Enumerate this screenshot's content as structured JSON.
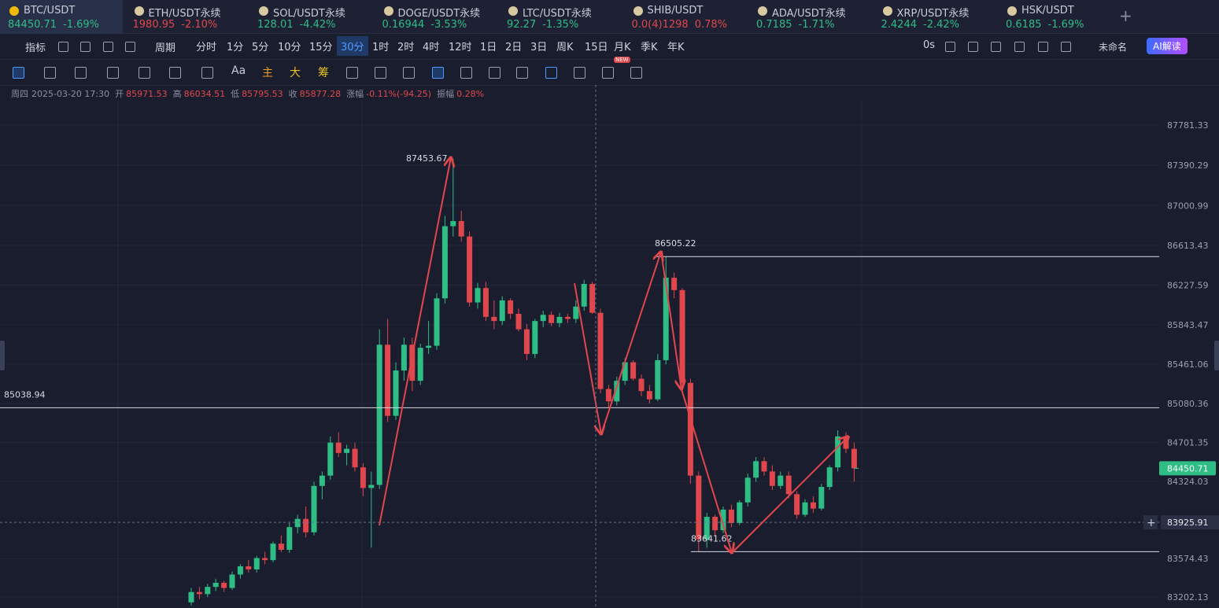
{
  "tabs": [
    {
      "symbol": "BTC/USDT",
      "price": "84450.71",
      "change": "-1.69%",
      "color": "#2ebd85"
    },
    {
      "symbol": "ETH/USDT永续",
      "price": "1980.95",
      "change": "-2.10%",
      "color": "#e0474c"
    },
    {
      "symbol": "SOL/USDT永续",
      "price": "128.01",
      "change": "-4.42%",
      "color": "#2ebd85"
    },
    {
      "symbol": "DOGE/USDT永续",
      "price": "0.16944",
      "change": "-3.53%",
      "color": "#2ebd85"
    },
    {
      "symbol": "LTC/USDT永续",
      "price": "92.27",
      "change": "-1.35%",
      "color": "#2ebd85"
    },
    {
      "symbol": "SHIB/USDT",
      "price": "0.0(4)1298",
      "change": "0.78%",
      "color": "#e0474c"
    },
    {
      "symbol": "ADA/USDT永续",
      "price": "0.7185",
      "change": "-1.71%",
      "color": "#2ebd85"
    },
    {
      "symbol": "XRP/USDT永续",
      "price": "2.4244",
      "change": "-2.42%",
      "color": "#2ebd85"
    },
    {
      "symbol": "HSK/USDT",
      "price": "0.6185",
      "change": "-1.69%",
      "color": "#2ebd85"
    }
  ],
  "toolbar": {
    "indicators": "指标",
    "period": "周期",
    "intervals": [
      "分时",
      "1分",
      "5分",
      "10分",
      "15分",
      "30分",
      "1时",
      "2时",
      "4时",
      "12时",
      "1日",
      "2日",
      "3日",
      "周K",
      "15日",
      "月K",
      "季K",
      "年K"
    ],
    "active_interval": 5,
    "timer": "0s",
    "layout_name": "未命名",
    "ai_button": "AI解读",
    "new_badge": "NEW",
    "draw_tools": [
      "Aa",
      "主",
      "大",
      "筹"
    ]
  },
  "info": {
    "weekday": "周四",
    "datetime": "2025-03-20 17:30",
    "items": [
      {
        "label": "开",
        "value": "85971.53"
      },
      {
        "label": "高",
        "value": "86034.51"
      },
      {
        "label": "低",
        "value": "85795.53"
      },
      {
        "label": "收",
        "value": "85877.28"
      },
      {
        "label": "涨幅",
        "value": "-0.11%(-94.25)"
      },
      {
        "label": "振幅",
        "value": "0.28%"
      }
    ]
  },
  "chart_data": {
    "type": "candlestick",
    "ylim": [
      83095.3,
      88170.6
    ],
    "yticks": [
      87781.33,
      87390.29,
      87000.99,
      86613.43,
      86227.59,
      85843.47,
      85461.06,
      85080.36,
      84701.35,
      84324.03,
      83574.43,
      83202.13
    ],
    "grid": true,
    "up_color": "#2ebd85",
    "down_color": "#e0474c",
    "levels": [
      85038.94
    ],
    "crosshair_price": 83925.91,
    "candles": [
      [
        83150,
        83290,
        83120,
        83250
      ],
      [
        83250,
        83300,
        83180,
        83230
      ],
      [
        83230,
        83330,
        83200,
        83300
      ],
      [
        83300,
        83380,
        83260,
        83340
      ],
      [
        83340,
        83360,
        83250,
        83290
      ],
      [
        83290,
        83450,
        83270,
        83420
      ],
      [
        83420,
        83520,
        83380,
        83500
      ],
      [
        83500,
        83560,
        83440,
        83470
      ],
      [
        83470,
        83600,
        83440,
        83580
      ],
      [
        83580,
        83640,
        83520,
        83560
      ],
      [
        83560,
        83740,
        83540,
        83720
      ],
      [
        83720,
        83800,
        83640,
        83660
      ],
      [
        83660,
        83920,
        83630,
        83880
      ],
      [
        83880,
        84000,
        83820,
        83960
      ],
      [
        83960,
        84080,
        83780,
        83830
      ],
      [
        83830,
        84320,
        83800,
        84280
      ],
      [
        84280,
        84420,
        84150,
        84380
      ],
      [
        84380,
        84760,
        84340,
        84700
      ],
      [
        84700,
        84800,
        84560,
        84600
      ],
      [
        84600,
        84680,
        84480,
        84640
      ],
      [
        84640,
        84700,
        84420,
        84460
      ],
      [
        84460,
        84500,
        84180,
        84260
      ],
      [
        84260,
        84420,
        83680,
        84290
      ],
      [
        84290,
        85800,
        84250,
        85650
      ],
      [
        85650,
        85900,
        84900,
        84960
      ],
      [
        84960,
        85480,
        84920,
        85400
      ],
      [
        85400,
        85720,
        85300,
        85650
      ],
      [
        85650,
        85720,
        85200,
        85300
      ],
      [
        85300,
        85660,
        85260,
        85620
      ],
      [
        85620,
        85880,
        85560,
        85640
      ],
      [
        85640,
        86150,
        85600,
        86100
      ],
      [
        86100,
        86900,
        86050,
        86800
      ],
      [
        86800,
        87453.67,
        86700,
        86850
      ],
      [
        86850,
        86950,
        86650,
        86700
      ],
      [
        86700,
        86750,
        86020,
        86060
      ],
      [
        86060,
        86250,
        86000,
        86200
      ],
      [
        86200,
        86260,
        85880,
        85920
      ],
      [
        85920,
        86080,
        85800,
        85880
      ],
      [
        85880,
        86120,
        85840,
        86080
      ],
      [
        86080,
        86100,
        85900,
        85950
      ],
      [
        85950,
        86000,
        85780,
        85800
      ],
      [
        85800,
        85850,
        85500,
        85560
      ],
      [
        85560,
        85900,
        85520,
        85880
      ],
      [
        85880,
        85980,
        85820,
        85940
      ],
      [
        85940,
        85970,
        85830,
        85860
      ],
      [
        85860,
        85960,
        85820,
        85920
      ],
      [
        85920,
        85950,
        85860,
        85900
      ],
      [
        85900,
        86080,
        85860,
        86020
      ],
      [
        86020,
        86280,
        85980,
        86240
      ],
      [
        86240,
        86260,
        85950,
        85960
      ],
      [
        85960,
        86000,
        85180,
        85220
      ],
      [
        85220,
        85260,
        85040,
        85100
      ],
      [
        85100,
        85340,
        85060,
        85300
      ],
      [
        85300,
        85520,
        85260,
        85480
      ],
      [
        85480,
        85500,
        85300,
        85320
      ],
      [
        85320,
        85360,
        85150,
        85200
      ],
      [
        85200,
        85260,
        85080,
        85120
      ],
      [
        85120,
        85560,
        85100,
        85500
      ],
      [
        85500,
        86505.22,
        85460,
        86300
      ],
      [
        86300,
        86350,
        86100,
        86180
      ],
      [
        86180,
        86200,
        85220,
        85280
      ],
      [
        85280,
        85320,
        84300,
        84380
      ],
      [
        84380,
        84420,
        83641.62,
        83760
      ],
      [
        83760,
        84020,
        83680,
        83980
      ],
      [
        83980,
        84000,
        83800,
        83850
      ],
      [
        83850,
        84080,
        83820,
        84050
      ],
      [
        84050,
        84100,
        83880,
        83920
      ],
      [
        83920,
        84140,
        83900,
        84120
      ],
      [
        84120,
        84400,
        84080,
        84360
      ],
      [
        84360,
        84560,
        84320,
        84520
      ],
      [
        84520,
        84560,
        84380,
        84420
      ],
      [
        84420,
        84480,
        84240,
        84280
      ],
      [
        84280,
        84420,
        84250,
        84380
      ],
      [
        84380,
        84420,
        84160,
        84200
      ],
      [
        84200,
        84230,
        83960,
        84000
      ],
      [
        84000,
        84150,
        83980,
        84120
      ],
      [
        84120,
        84180,
        84020,
        84060
      ],
      [
        84060,
        84300,
        84040,
        84270
      ],
      [
        84270,
        84480,
        84240,
        84460
      ],
      [
        84460,
        84820,
        84420,
        84760
      ],
      [
        84760,
        84800,
        84600,
        84640
      ],
      [
        84640,
        84700,
        84320,
        84450.71
      ]
    ]
  }
}
